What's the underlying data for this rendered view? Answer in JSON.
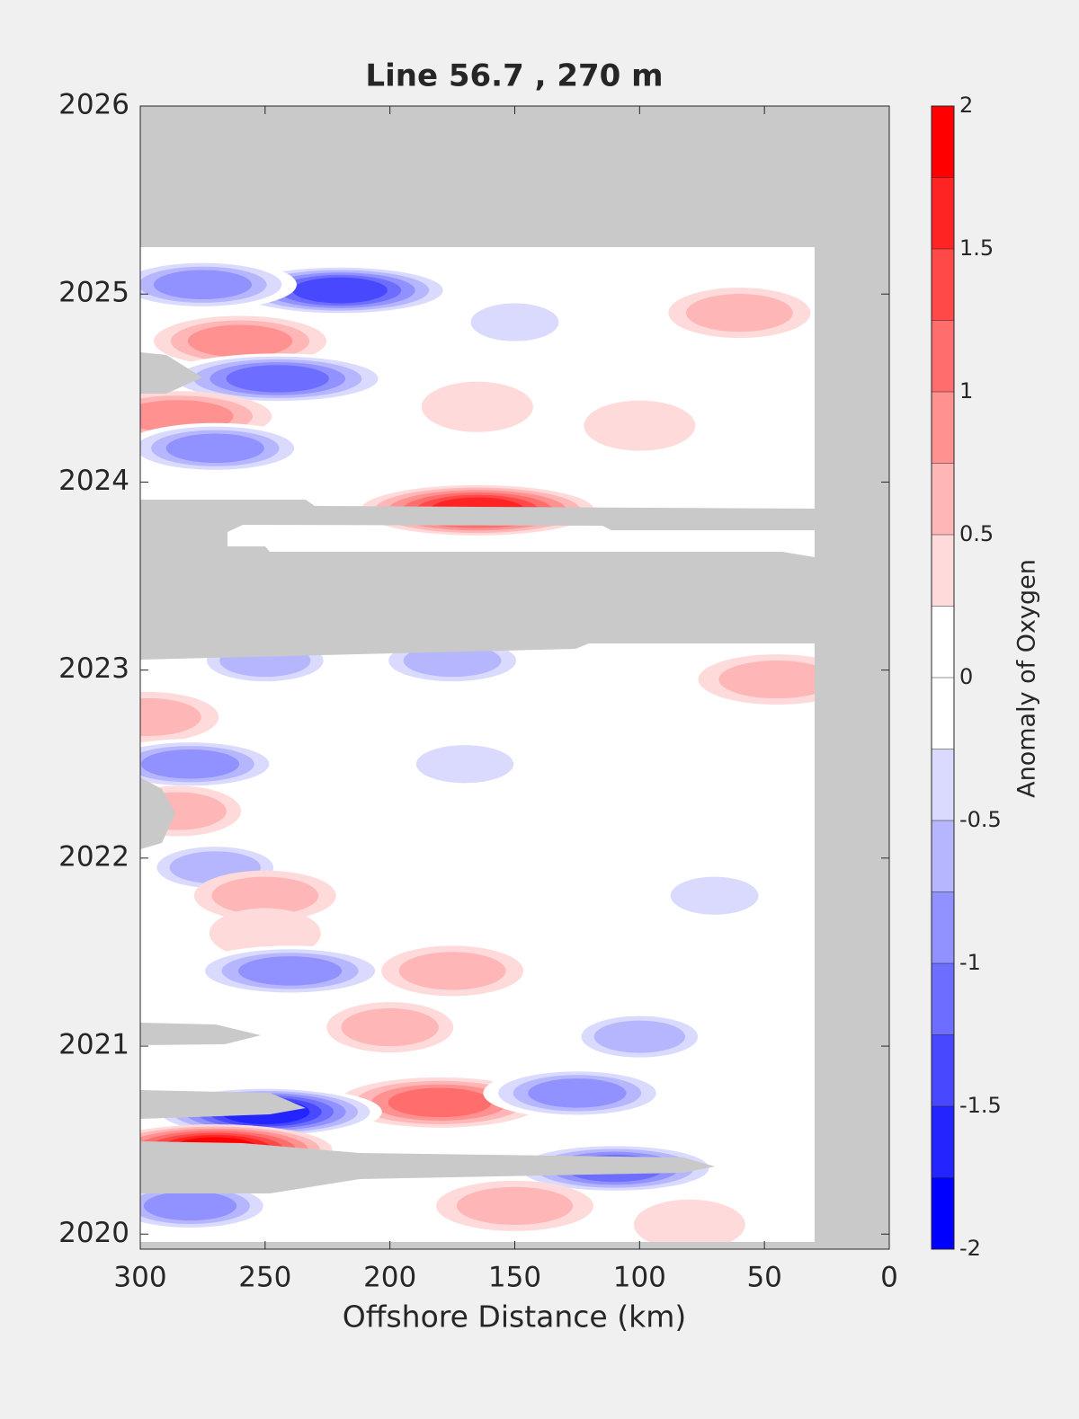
{
  "chart_data": {
    "type": "contour",
    "title": "Line 56.7 , 270 m",
    "xlabel": "Offshore Distance (km)",
    "colorbar_label": "Anomaly of Oxygen",
    "xlim": [
      300,
      0
    ],
    "xticks": [
      300,
      250,
      200,
      150,
      100,
      50,
      0
    ],
    "ylim": [
      2019.92,
      2026
    ],
    "yticks": [
      2020,
      2021,
      2022,
      2023,
      2024,
      2025,
      2026
    ],
    "clim": [
      -2,
      2
    ],
    "cticks": [
      -2,
      -1.5,
      -1,
      -0.5,
      0,
      0.5,
      1,
      1.5,
      2
    ],
    "levels": [
      -2,
      -1.75,
      -1.5,
      -1.25,
      -1,
      -0.75,
      -0.5,
      -0.25,
      0,
      0.25,
      0.5,
      0.75,
      1,
      1.25,
      1.5,
      1.75,
      2
    ],
    "colors": [
      "#0000ff",
      "#2424ff",
      "#4848ff",
      "#6d6dff",
      "#9191ff",
      "#b6b6ff",
      "#dadaff",
      "#ffffff",
      "#ffffff",
      "#ffdada",
      "#ffb6b6",
      "#ff9191",
      "#ff6d6d",
      "#ff4848",
      "#ff2424",
      "#ff0000"
    ],
    "features": [
      {
        "x": 220,
        "y": 2025.02,
        "value": -1.4
      },
      {
        "x": 275,
        "y": 2025.05,
        "value": -0.9
      },
      {
        "x": 150,
        "y": 2024.85,
        "value": -0.4
      },
      {
        "x": 260,
        "y": 2024.75,
        "value": 0.8
      },
      {
        "x": 60,
        "y": 2024.9,
        "value": 0.6
      },
      {
        "x": 245,
        "y": 2024.55,
        "value": -1.2
      },
      {
        "x": 285,
        "y": 2024.35,
        "value": 0.9
      },
      {
        "x": 165,
        "y": 2024.4,
        "value": 0.4
      },
      {
        "x": 100,
        "y": 2024.3,
        "value": 0.4
      },
      {
        "x": 270,
        "y": 2024.18,
        "value": -0.9
      },
      {
        "x": 165,
        "y": 2023.85,
        "value": 1.6
      },
      {
        "x": 250,
        "y": 2023.05,
        "value": -0.6
      },
      {
        "x": 175,
        "y": 2023.05,
        "value": -0.7
      },
      {
        "x": 45,
        "y": 2022.95,
        "value": 0.7
      },
      {
        "x": 297,
        "y": 2022.75,
        "value": 0.6
      },
      {
        "x": 280,
        "y": 2022.5,
        "value": -0.9
      },
      {
        "x": 170,
        "y": 2022.5,
        "value": -0.5
      },
      {
        "x": 285,
        "y": 2022.25,
        "value": 0.5
      },
      {
        "x": 270,
        "y": 2021.95,
        "value": -0.6
      },
      {
        "x": 250,
        "y": 2021.8,
        "value": 0.6
      },
      {
        "x": 70,
        "y": 2021.8,
        "value": -0.4
      },
      {
        "x": 250,
        "y": 2021.6,
        "value": 0.4
      },
      {
        "x": 240,
        "y": 2021.4,
        "value": -1.0
      },
      {
        "x": 175,
        "y": 2021.4,
        "value": 0.6
      },
      {
        "x": 200,
        "y": 2021.1,
        "value": 0.5
      },
      {
        "x": 100,
        "y": 2021.05,
        "value": -0.6
      },
      {
        "x": 180,
        "y": 2020.7,
        "value": 1.0
      },
      {
        "x": 125,
        "y": 2020.75,
        "value": -0.9
      },
      {
        "x": 250,
        "y": 2020.65,
        "value": -1.6
      },
      {
        "x": 270,
        "y": 2020.45,
        "value": 1.9
      },
      {
        "x": 110,
        "y": 2020.35,
        "value": -1.1
      },
      {
        "x": 280,
        "y": 2020.15,
        "value": -0.8
      },
      {
        "x": 150,
        "y": 2020.15,
        "value": 0.7
      },
      {
        "x": 80,
        "y": 2020.05,
        "value": 0.4
      }
    ]
  }
}
